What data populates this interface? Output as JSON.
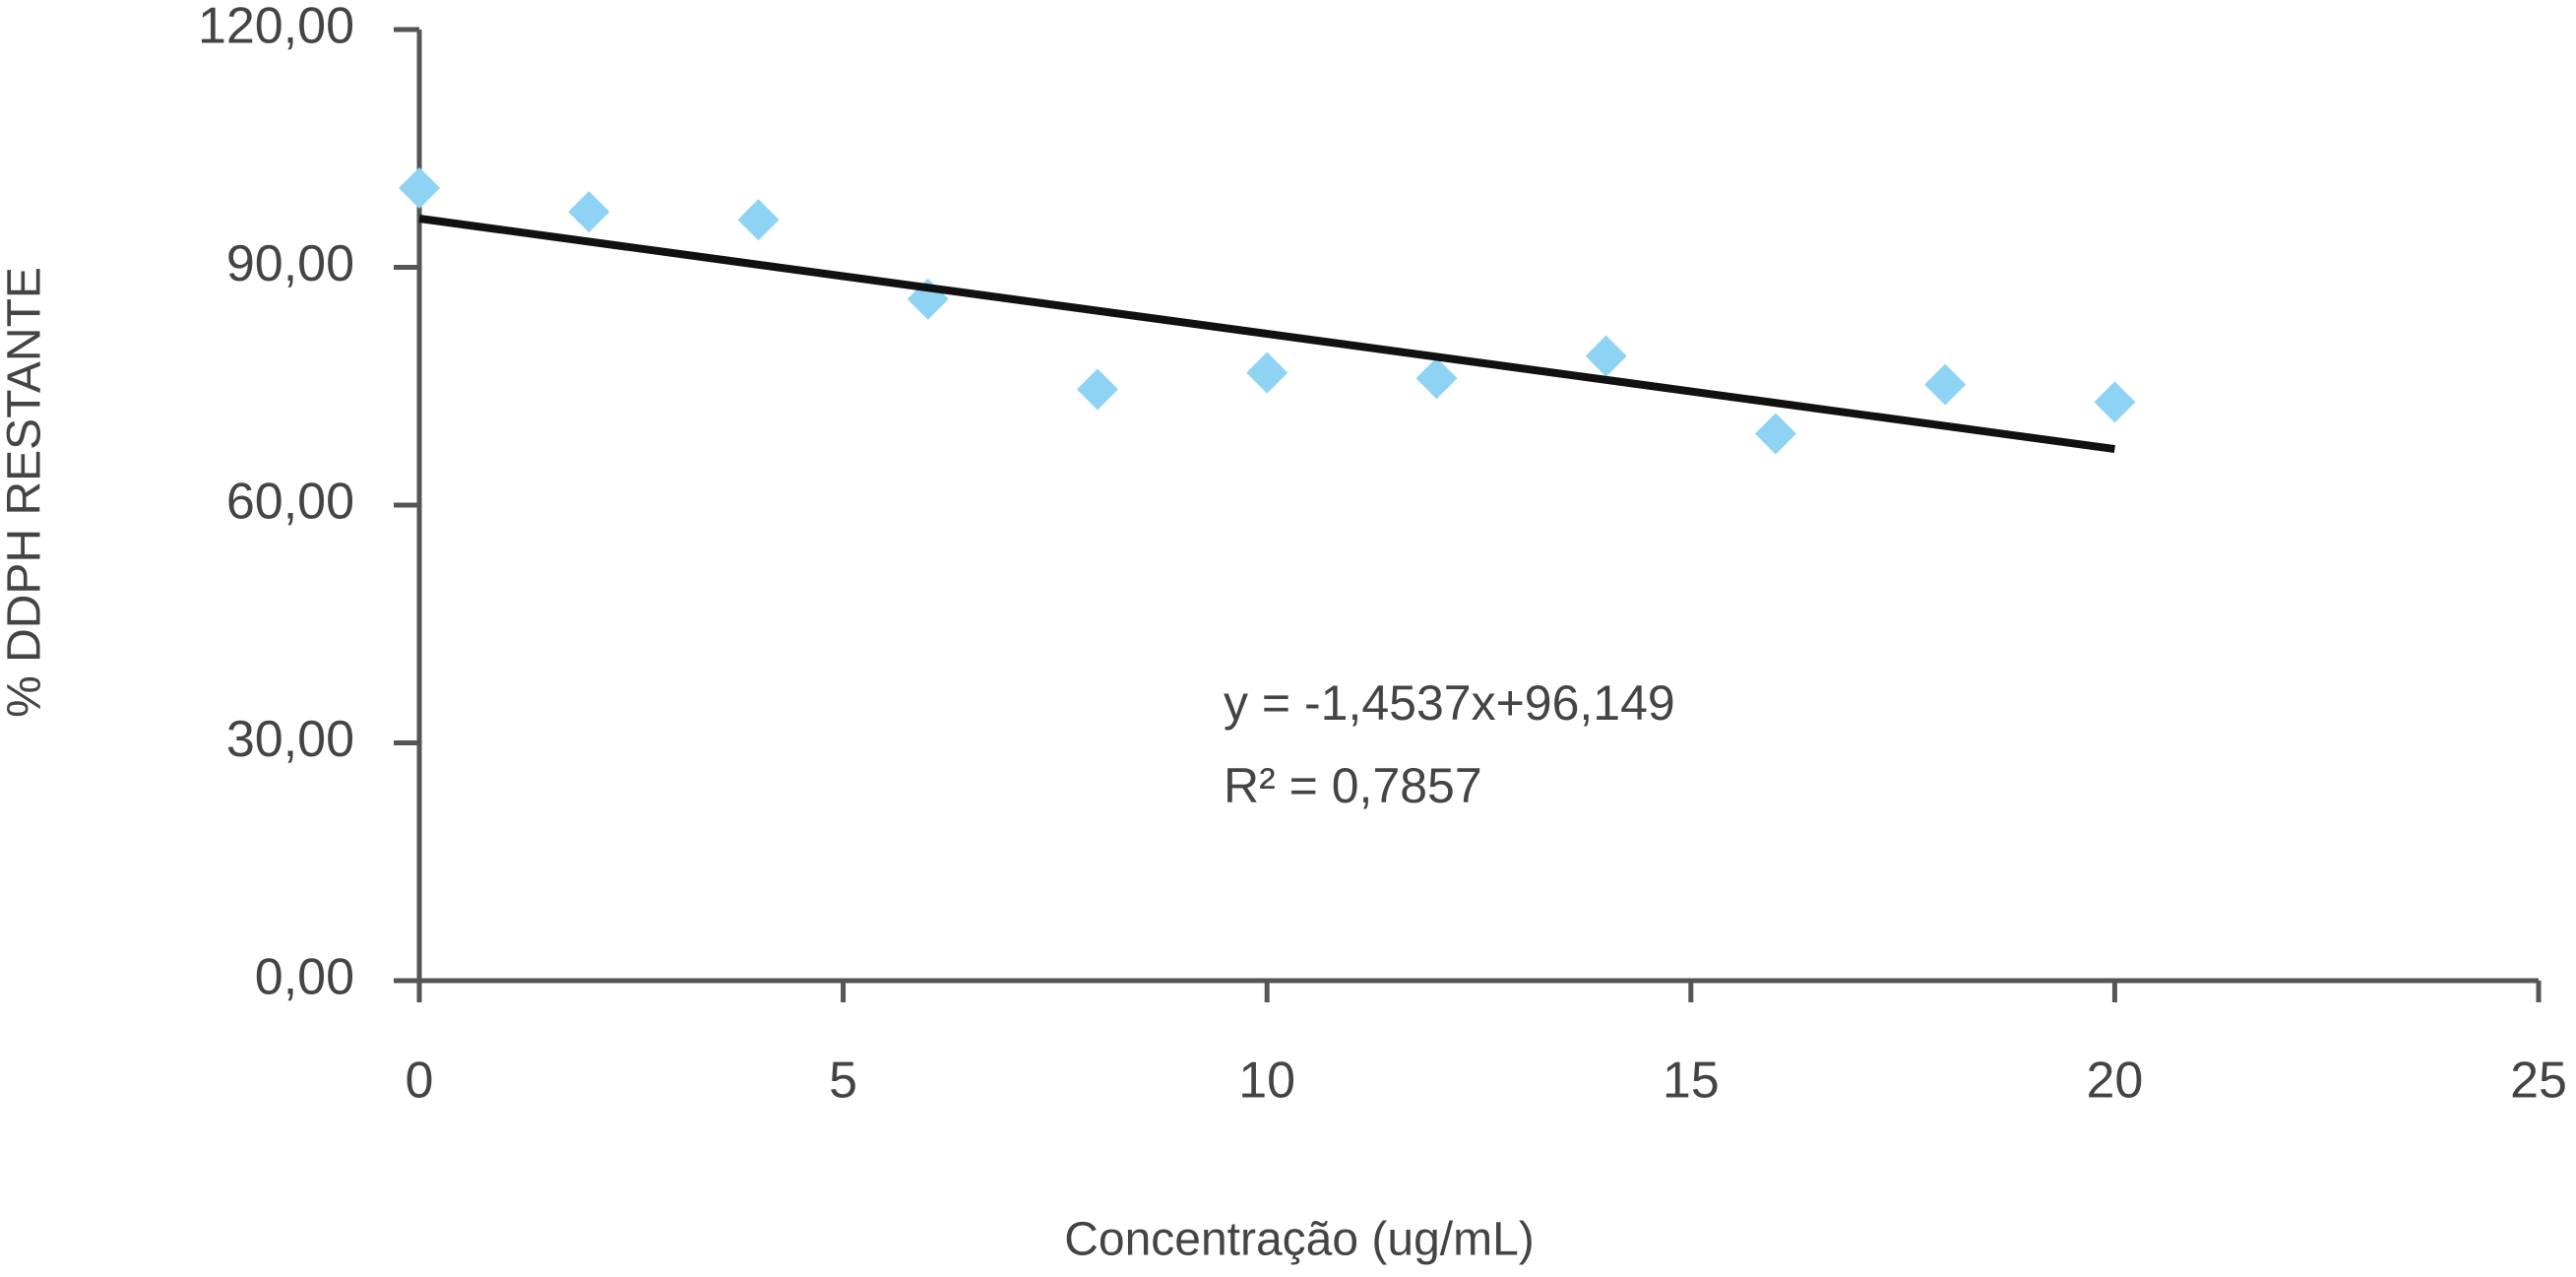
{
  "chart_data": {
    "type": "scatter",
    "x_label": "Concentração (ug/mL)",
    "y_label": "% DDPH RESTANTE",
    "x": [
      0,
      2,
      4,
      6,
      8,
      10,
      12,
      14,
      16,
      18,
      20
    ],
    "series": [
      {
        "color": "#8fd3f4",
        "values": [
          100,
          97,
          96,
          86,
          74.6,
          76.7,
          76,
          78.8,
          69,
          75.2,
          73
        ]
      }
    ],
    "trendline": {
      "slope": -1.4537,
      "intercept": 96.149,
      "label": "y = -1,4537x+96,149",
      "r2": 0.7857,
      "r2_label": "R² = 0,7857",
      "color": "#111111"
    },
    "xlim": [
      0,
      25
    ],
    "xticks": [
      0,
      5,
      10,
      15,
      20,
      25
    ],
    "ylim": [
      0,
      120
    ],
    "yticks": [
      {
        "value": 0,
        "label": "0,00"
      },
      {
        "value": 30,
        "label": "30,00"
      },
      {
        "value": 60,
        "label": "60,00"
      },
      {
        "value": 90,
        "label": "90,00"
      },
      {
        "value": 120,
        "label": "120,00"
      }
    ]
  }
}
